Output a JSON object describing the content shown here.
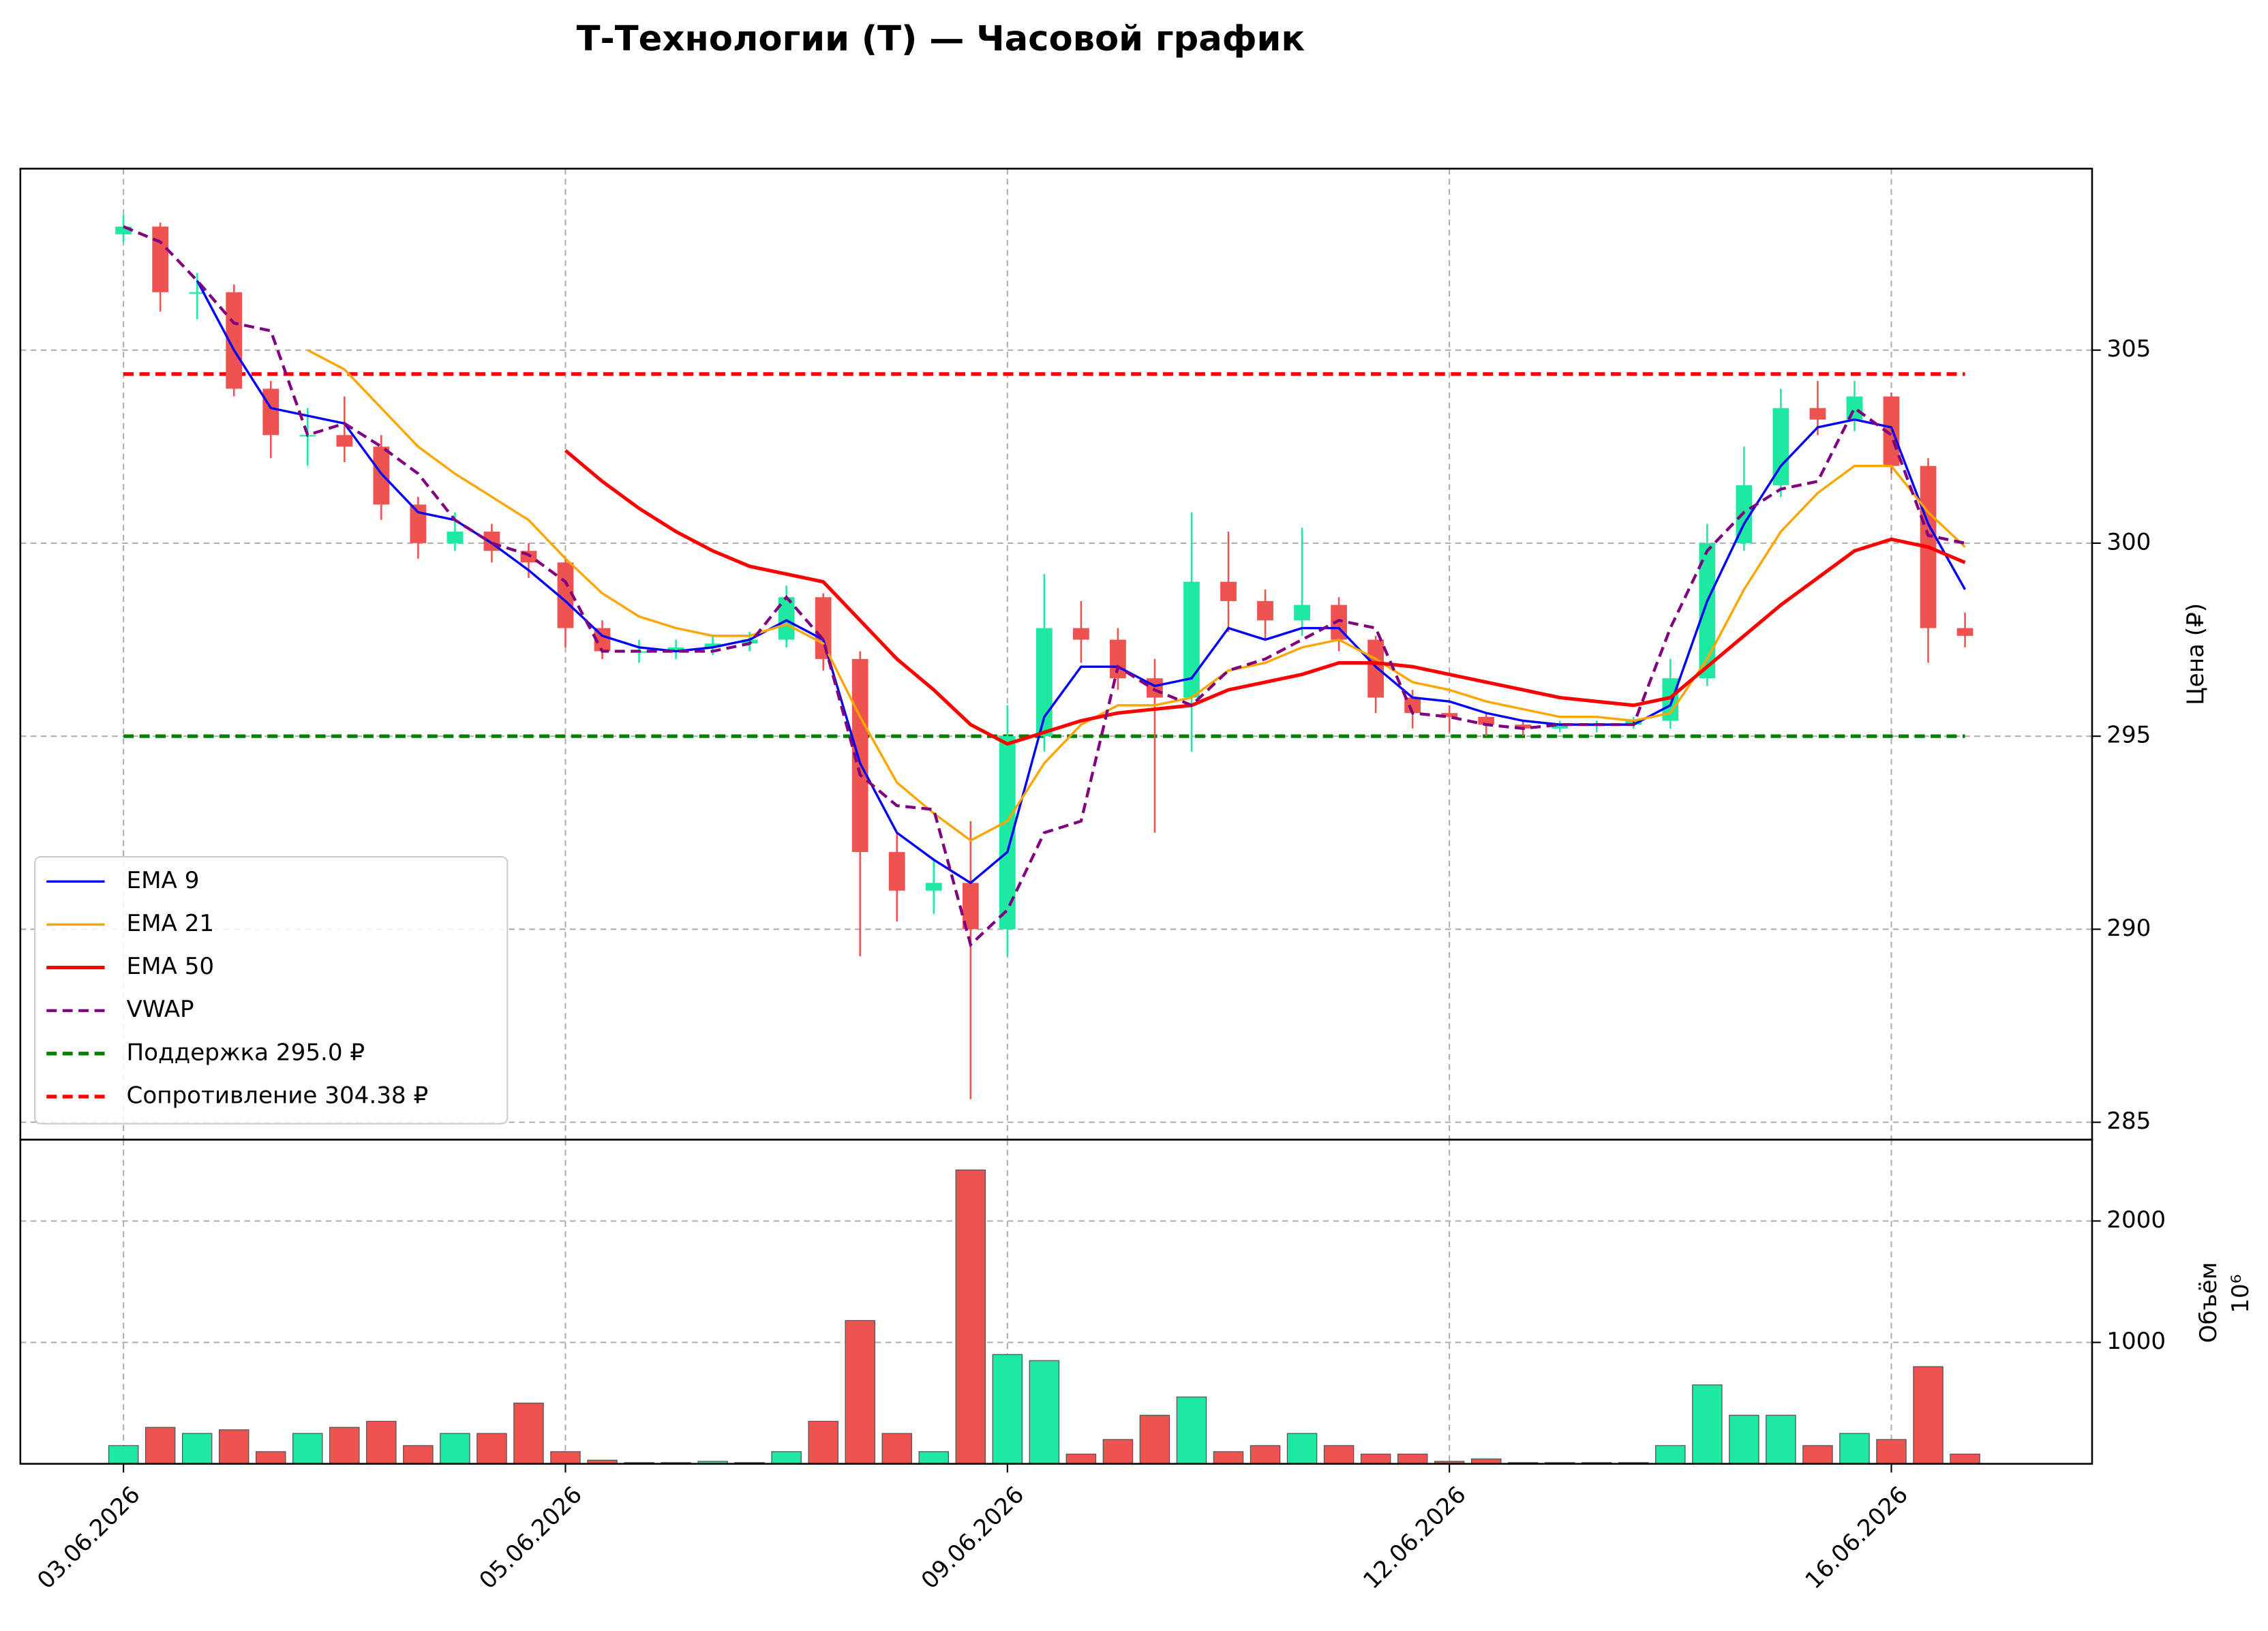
{
  "chart_data": {
    "type": "candlestick",
    "title": "Т-Технологии (T) — Часовой график",
    "ylabel": "Цена (₽)",
    "grid": true,
    "legend": "lower left",
    "up_color": "#1de9a0",
    "down_color": "#ef5350",
    "xlim": [
      -2.8,
      53.45
    ],
    "xticks": [
      {
        "value": 0,
        "label": "03.06.2026"
      },
      {
        "value": 12,
        "label": "05.06.2026"
      },
      {
        "value": 24,
        "label": "09.06.2026"
      },
      {
        "value": 36,
        "label": "12.06.2026"
      },
      {
        "value": 48,
        "label": "16.06.2026"
      }
    ],
    "ylim": [
      284.55,
      309.7
    ],
    "yticks": [
      285,
      290,
      295,
      300,
      305
    ],
    "open": [
      308,
      308.2,
      306.5,
      306.5,
      304,
      302.8,
      302.8,
      302.5,
      301,
      300,
      300.3,
      299.8,
      299.5,
      297.8,
      297.2,
      297.2,
      297.3,
      297.4,
      297.5,
      298.6,
      297,
      292,
      291,
      291.2,
      290,
      295,
      297.8,
      297.5,
      296.5,
      296,
      299,
      298.5,
      298,
      298.4,
      297.5,
      296,
      295.6,
      295.5,
      295.3,
      295.2,
      295.3,
      295.3,
      295.4,
      296.5,
      300,
      301.5,
      303.5,
      303.2,
      303.8,
      302,
      297.8
    ],
    "high": [
      308.5,
      308.3,
      307,
      306.7,
      304.2,
      303.5,
      303.8,
      302.8,
      301.2,
      300.8,
      300.5,
      300,
      299.6,
      298,
      297.5,
      297.5,
      297.6,
      297.7,
      298.9,
      298.7,
      297.2,
      292.5,
      291.8,
      292.8,
      295.8,
      299.2,
      298.5,
      297.8,
      297,
      300.8,
      300.3,
      298.8,
      300.4,
      298.6,
      297.6,
      296.2,
      295.8,
      295.6,
      295.4,
      295.4,
      295.4,
      295.5,
      297,
      300.5,
      302.5,
      304,
      304.2,
      304.2,
      303.9,
      302.2,
      298.2
    ],
    "low": [
      307.8,
      306,
      305.8,
      303.8,
      302.2,
      302,
      302.1,
      300.6,
      299.6,
      299.8,
      299.5,
      299.1,
      297.3,
      297,
      296.9,
      297,
      297.1,
      297.2,
      297.3,
      296.7,
      289.3,
      290.2,
      290.4,
      285.6,
      289.3,
      294.6,
      296.9,
      296.2,
      292.5,
      294.6,
      297.7,
      297.5,
      297.6,
      297.2,
      295.6,
      295.2,
      295.1,
      295,
      295,
      295.1,
      295.1,
      295.2,
      295.2,
      296.3,
      299.8,
      301.2,
      302.8,
      302.9,
      301.8,
      296.9,
      297.3
    ],
    "close": [
      308.2,
      306.5,
      306.5,
      304,
      302.8,
      302.8,
      302.5,
      301,
      300,
      300.3,
      299.8,
      299.5,
      297.8,
      297.2,
      297.2,
      297.3,
      297.4,
      297.5,
      298.6,
      297,
      292,
      291,
      291.2,
      290,
      295,
      297.8,
      297.5,
      296.5,
      296,
      299,
      298.5,
      298,
      298.4,
      297.5,
      296,
      295.6,
      295.5,
      295.3,
      295.2,
      295.3,
      295.3,
      295.4,
      296.5,
      300,
      301.5,
      303.5,
      303.2,
      303.8,
      302,
      297.8,
      297.6
    ],
    "series": [
      {
        "name": "EMA 9",
        "color": "#0000ff",
        "linestyle": "solid",
        "width": 1.6,
        "values": [
          null,
          null,
          306.8,
          305,
          303.5,
          303.3,
          303.1,
          301.8,
          300.8,
          300.6,
          300,
          299.3,
          298.5,
          297.6,
          297.3,
          297.2,
          297.3,
          297.5,
          298,
          297.5,
          294.3,
          292.5,
          291.8,
          291.2,
          292,
          295.5,
          296.8,
          296.8,
          296.3,
          296.5,
          297.8,
          297.5,
          297.8,
          297.8,
          296.8,
          296,
          295.9,
          295.6,
          295.4,
          295.3,
          295.3,
          295.3,
          295.8,
          298.5,
          300.5,
          302,
          303,
          303.2,
          303,
          300.5,
          298.8
        ]
      },
      {
        "name": "EMA 21",
        "color": "#ffa500",
        "linestyle": "solid",
        "width": 1.6,
        "values": [
          null,
          null,
          null,
          null,
          null,
          305,
          304.5,
          303.5,
          302.5,
          301.8,
          301.2,
          300.6,
          299.6,
          298.7,
          298.1,
          297.8,
          297.6,
          297.6,
          297.9,
          297.4,
          295.5,
          293.8,
          293,
          292.3,
          292.8,
          294.3,
          295.3,
          295.8,
          295.8,
          296,
          296.7,
          296.9,
          297.3,
          297.5,
          297,
          296.4,
          296.2,
          295.9,
          295.7,
          295.5,
          295.5,
          295.4,
          295.6,
          297,
          298.8,
          300.3,
          301.3,
          302,
          302,
          300.8,
          299.9
        ]
      },
      {
        "name": "EMA 50",
        "color": "#ff0000",
        "linestyle": "solid",
        "width": 2.4,
        "values": [
          null,
          null,
          null,
          null,
          null,
          null,
          null,
          null,
          null,
          null,
          null,
          null,
          302.4,
          301.6,
          300.9,
          300.3,
          299.8,
          299.4,
          299.2,
          299,
          298,
          297,
          296.2,
          295.3,
          294.8,
          295.1,
          295.4,
          295.6,
          295.7,
          295.8,
          296.2,
          296.4,
          296.6,
          296.9,
          296.9,
          296.8,
          296.6,
          296.4,
          296.2,
          296,
          295.9,
          295.8,
          296,
          296.8,
          297.6,
          298.4,
          299.1,
          299.8,
          300.1,
          299.9,
          299.5
        ]
      },
      {
        "name": "VWAP",
        "color": "#800080",
        "linestyle": "dashed",
        "width": 2,
        "values": [
          308.2,
          307.8,
          306.8,
          305.7,
          305.5,
          302.8,
          303.1,
          302.5,
          301.8,
          300.6,
          300,
          299.7,
          299,
          297.2,
          297.2,
          297.2,
          297.2,
          297.4,
          298.6,
          297.5,
          294,
          293.2,
          293.1,
          289.6,
          290.5,
          292.5,
          292.8,
          296.8,
          296.2,
          295.8,
          296.7,
          297,
          297.5,
          298,
          297.8,
          295.6,
          295.5,
          295.3,
          295.2,
          295.3,
          295.3,
          295.3,
          297.8,
          299.8,
          300.8,
          301.4,
          301.6,
          303.5,
          302.8,
          300.2,
          300
        ]
      }
    ],
    "levels": [
      {
        "name": "Поддержка 295.0 ₽",
        "value": 295,
        "color": "#008000",
        "linestyle": "dashed"
      },
      {
        "name": "Сопротивление 304.38 ₽",
        "value": 304.38,
        "color": "#ff0000",
        "linestyle": "dashed"
      }
    ],
    "volume": {
      "ylabel": "Объём",
      "offset_label": "10⁶",
      "ylim": [
        0,
        2670
      ],
      "yticks": [
        1000,
        2000
      ],
      "values": [
        150,
        300,
        250,
        280,
        100,
        250,
        300,
        350,
        150,
        250,
        250,
        500,
        100,
        30,
        10,
        10,
        20,
        10,
        100,
        350,
        1180,
        250,
        100,
        2420,
        900,
        850,
        80,
        200,
        400,
        550,
        100,
        150,
        250,
        150,
        80,
        80,
        20,
        40,
        10,
        10,
        10,
        10,
        150,
        650,
        400,
        400,
        150,
        250,
        200,
        800,
        80
      ]
    }
  }
}
